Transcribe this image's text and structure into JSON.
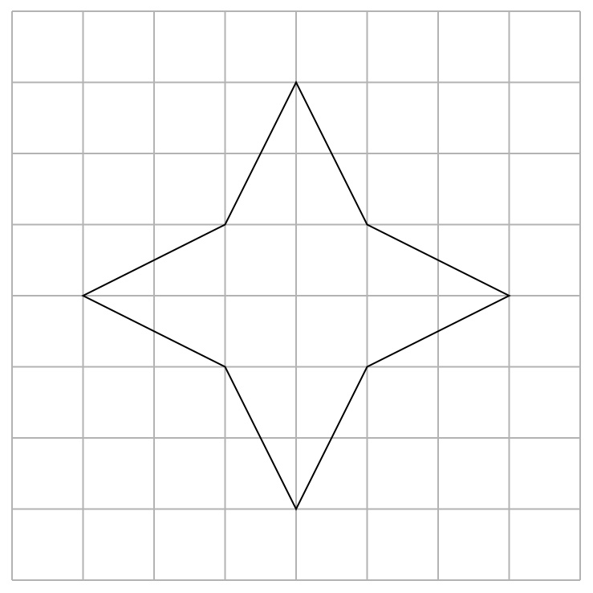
{
  "grid": {
    "cols": 8,
    "rows": 8,
    "line_color": "#b3b3b3",
    "background": "#ffffff"
  },
  "star": {
    "stroke_color": "#000000",
    "vertices": [
      [
        4,
        1
      ],
      [
        5,
        3
      ],
      [
        7,
        4
      ],
      [
        5,
        5
      ],
      [
        4,
        7
      ],
      [
        3,
        5
      ],
      [
        1,
        4
      ],
      [
        3,
        3
      ]
    ]
  }
}
